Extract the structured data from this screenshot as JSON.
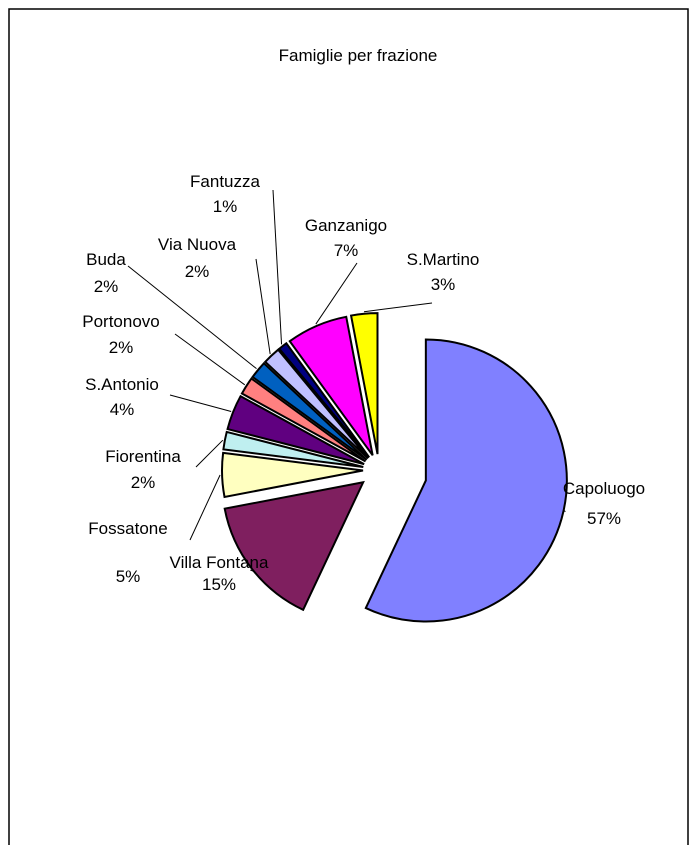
{
  "chart_data": {
    "type": "pie",
    "title": "Famiglie per frazione",
    "categories": [
      "Capoluogo",
      "Villa Fontana",
      "Fossatone",
      "Fiorentina",
      "S.Antonio",
      "Portonovo",
      "Buda",
      "Via Nuova",
      "Fantuzza",
      "Ganzanigo",
      "S.Martino"
    ],
    "values": [
      57,
      15,
      5,
      2,
      4,
      2,
      2,
      2,
      1,
      7,
      3
    ],
    "value_labels": [
      "57%",
      "15%",
      "5%",
      "2%",
      "4%",
      "2%",
      "2%",
      "2%",
      "1%",
      "7%",
      "3%"
    ],
    "colors": [
      "#8080ff",
      "#7f1f5f",
      "#ffffc0",
      "#bfeff0",
      "#600080",
      "#ff8080",
      "#0060c0",
      "#c0c0ff",
      "#000080",
      "#ff00ff",
      "#ffff00"
    ],
    "exploded": true,
    "legend": "none"
  }
}
